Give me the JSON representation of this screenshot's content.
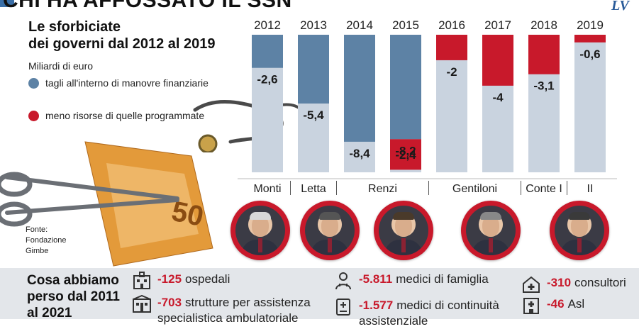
{
  "header": {
    "headline": "CHI HA AFFOSSATO IL SSN",
    "logo": "LV"
  },
  "title": "Le sforbiciate dei governi dal 2012 al 2019",
  "title_line1": "Le sforbiciate",
  "title_line2": "dei governi dal 2012 al 2019",
  "unit": "Miliardi di euro",
  "legend": [
    {
      "label": "tagli all'interno di manovre finanziarie",
      "color": "#5d82a5"
    },
    {
      "label": "meno risorse di quelle programmate",
      "color": "#c8192b"
    }
  ],
  "source": {
    "line1": "Fonte:",
    "line2": "Fondazione",
    "line3": "Gimbe"
  },
  "chart_data": {
    "type": "bar",
    "categories": [
      "2012",
      "2013",
      "2014",
      "2015",
      "2016",
      "2017",
      "2018",
      "2019"
    ],
    "series": [
      {
        "name": "tagli all'interno di manovre finanziarie",
        "color": "#5d82a5",
        "values": [
          -2.6,
          -5.4,
          -8.4,
          -8.2,
          0,
          0,
          0,
          0
        ]
      },
      {
        "name": "meno risorse di quelle programmate",
        "color": "#c8192b",
        "values": [
          0,
          0,
          0,
          -2.4,
          -2,
          -4,
          -3.1,
          -0.6
        ]
      }
    ],
    "data_labels": [
      {
        "year": "2012",
        "text": "-2,6"
      },
      {
        "year": "2013",
        "text": "-5,4"
      },
      {
        "year": "2014",
        "text": "-8,4"
      },
      {
        "year": "2015",
        "text": "-8,2"
      },
      {
        "year": "2015",
        "text": "-2,4"
      },
      {
        "year": "2016",
        "text": "-2"
      },
      {
        "year": "2017",
        "text": "-4"
      },
      {
        "year": "2018",
        "text": "-3,1"
      },
      {
        "year": "2019",
        "text": "-0,6"
      }
    ],
    "ylim": [
      -10.8,
      0
    ],
    "governments": [
      {
        "name": "Monti",
        "years": [
          "2012"
        ]
      },
      {
        "name": "Letta",
        "years": [
          "2013"
        ]
      },
      {
        "name": "Renzi",
        "years": [
          "2014",
          "2015"
        ]
      },
      {
        "name": "Gentiloni",
        "years": [
          "2016",
          "2017"
        ]
      },
      {
        "name": "Conte I",
        "years": [
          "2018"
        ]
      },
      {
        "name": "II",
        "years": [
          "2019"
        ]
      }
    ],
    "background_bar_color": "#c9d3df"
  },
  "bottom": {
    "title_line1": "Cosa abbiamo",
    "title_line2": "perso dal 2011",
    "title_line3": "al 2021",
    "stats": [
      {
        "num": "-125",
        "text": "ospedali",
        "icon": "hospital-building-icon"
      },
      {
        "num": "-703",
        "text": "strutture per assistenza",
        "text2": "specialistica ambulatoriale",
        "icon": "clinic-building-icon"
      },
      {
        "num": "-5.811",
        "text": "medici di famiglia",
        "icon": "doctor-icon"
      },
      {
        "num": "-1.577",
        "text": "medici di continuità",
        "text2": "assistenziale",
        "icon": "medical-report-icon"
      },
      {
        "num": "-310",
        "text": "consultori",
        "icon": "house-cross-icon"
      },
      {
        "num": "-46",
        "text": "Asl",
        "icon": "hospital-icon"
      }
    ]
  }
}
